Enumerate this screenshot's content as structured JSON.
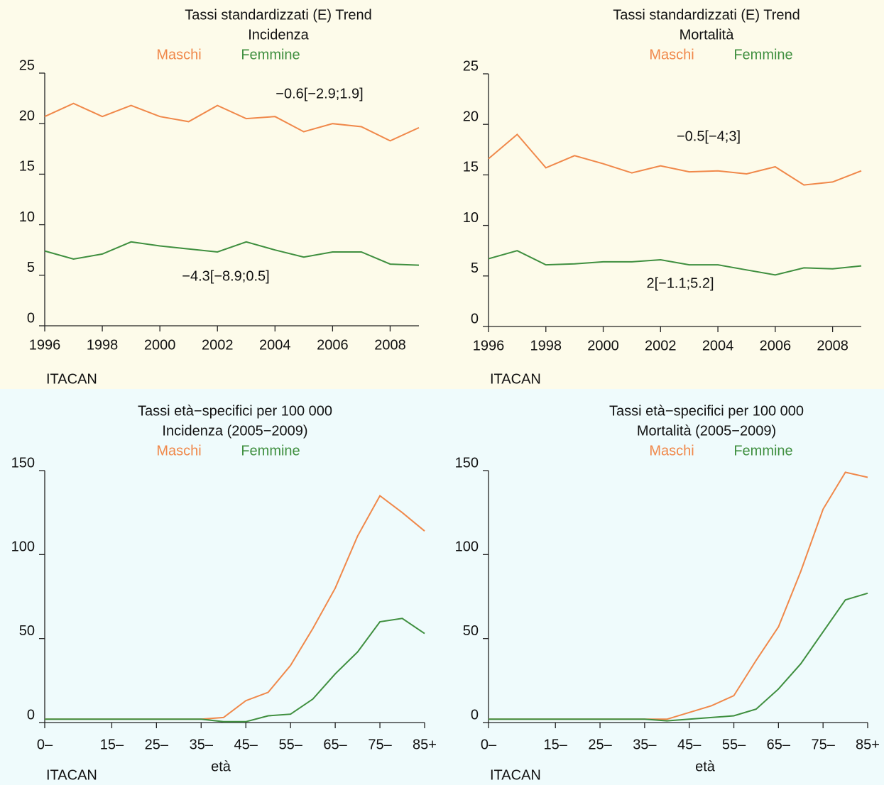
{
  "chart_data": [
    {
      "type": "line",
      "title": "Tassi standardizzati (E) Trend",
      "subtitle": "Incidenza",
      "source": "ITACAN",
      "x": [
        1996,
        1997,
        1998,
        1999,
        2000,
        2001,
        2002,
        2003,
        2004,
        2005,
        2006,
        2007,
        2008,
        2009
      ],
      "xlim": [
        1996,
        2009
      ],
      "xticks": [
        1996,
        1998,
        2000,
        2002,
        2004,
        2006,
        2008
      ],
      "ylim": [
        0,
        25
      ],
      "yticks": [
        0,
        5,
        10,
        15,
        20,
        25
      ],
      "series": [
        {
          "name": "Maschi",
          "color": "#f0884a",
          "values": [
            20.7,
            22.0,
            20.7,
            21.8,
            20.7,
            20.2,
            21.8,
            20.5,
            20.7,
            19.2,
            20.0,
            19.7,
            18.3,
            19.6
          ]
        },
        {
          "name": "Femmine",
          "color": "#3f8f3f",
          "values": [
            7.4,
            6.6,
            7.1,
            8.3,
            7.9,
            7.6,
            7.3,
            8.3,
            7.5,
            6.8,
            7.3,
            7.3,
            6.1,
            6.0
          ]
        }
      ],
      "annotations": [
        "−0.6[−2.9;1.9]",
        "−4.3[−8.9;0.5]"
      ]
    },
    {
      "type": "line",
      "title": "Tassi standardizzati (E) Trend",
      "subtitle": "Mortalità",
      "source": "ITACAN",
      "x": [
        1996,
        1997,
        1998,
        1999,
        2000,
        2001,
        2002,
        2003,
        2004,
        2005,
        2006,
        2007,
        2008,
        2009
      ],
      "xlim": [
        1996,
        2009
      ],
      "xticks": [
        1996,
        1998,
        2000,
        2002,
        2004,
        2006,
        2008
      ],
      "ylim": [
        0,
        25
      ],
      "yticks": [
        0,
        5,
        10,
        15,
        20,
        25
      ],
      "series": [
        {
          "name": "Maschi",
          "color": "#f0884a",
          "values": [
            16.6,
            19.0,
            15.7,
            16.9,
            16.1,
            15.2,
            15.9,
            15.3,
            15.4,
            15.1,
            15.8,
            14.0,
            14.3,
            15.4
          ]
        },
        {
          "name": "Femmine",
          "color": "#3f8f3f",
          "values": [
            6.7,
            7.5,
            6.1,
            6.2,
            6.4,
            6.4,
            6.6,
            6.1,
            6.1,
            5.6,
            5.1,
            5.8,
            5.7,
            6.0
          ]
        }
      ],
      "annotations": [
        "−0.5[−4;3]",
        "2[−1.1;5.2]"
      ]
    },
    {
      "type": "line",
      "title": "Tassi età−specifici per 100 000",
      "subtitle": "Incidenza (2005−2009)",
      "source": "ITACAN",
      "x_label": "età",
      "categories": [
        "0–",
        null,
        null,
        "15–",
        null,
        "25–",
        null,
        "35–",
        null,
        "45–",
        null,
        "55–",
        null,
        "65–",
        null,
        "75–",
        null,
        "85+"
      ],
      "ylim": [
        0,
        150
      ],
      "yticks": [
        0,
        50,
        100,
        150
      ],
      "series": [
        {
          "name": "Maschi",
          "color": "#f0884a",
          "values": [
            2,
            2,
            2,
            2,
            2,
            2,
            2,
            2,
            3,
            13,
            18,
            34,
            56,
            80,
            111,
            135,
            125,
            114
          ]
        },
        {
          "name": "Femmine",
          "color": "#3f8f3f",
          "values": [
            2,
            2,
            2,
            2,
            2,
            2,
            2,
            2,
            0.5,
            0.5,
            4,
            5,
            14,
            29,
            42,
            60,
            62,
            53
          ]
        }
      ]
    },
    {
      "type": "line",
      "title": "Tassi età−specifici per 100 000",
      "subtitle": "Mortalità (2005−2009)",
      "source": "ITACAN",
      "x_label": "età",
      "categories": [
        "0–",
        null,
        null,
        "15–",
        null,
        "25–",
        null,
        "35–",
        null,
        "45–",
        null,
        "55–",
        null,
        "65–",
        null,
        "75–",
        null,
        "85+"
      ],
      "ylim": [
        0,
        150
      ],
      "yticks": [
        0,
        50,
        100,
        150
      ],
      "series": [
        {
          "name": "Maschi",
          "color": "#f0884a",
          "values": [
            2,
            2,
            2,
            2,
            2,
            2,
            2,
            2,
            2,
            6,
            10,
            16,
            37,
            57,
            90,
            127,
            149,
            146
          ]
        },
        {
          "name": "Femmine",
          "color": "#3f8f3f",
          "values": [
            2,
            2,
            2,
            2,
            2,
            2,
            2,
            2,
            1,
            2,
            3,
            4,
            8,
            20,
            35,
            54,
            73,
            77
          ]
        }
      ]
    }
  ]
}
